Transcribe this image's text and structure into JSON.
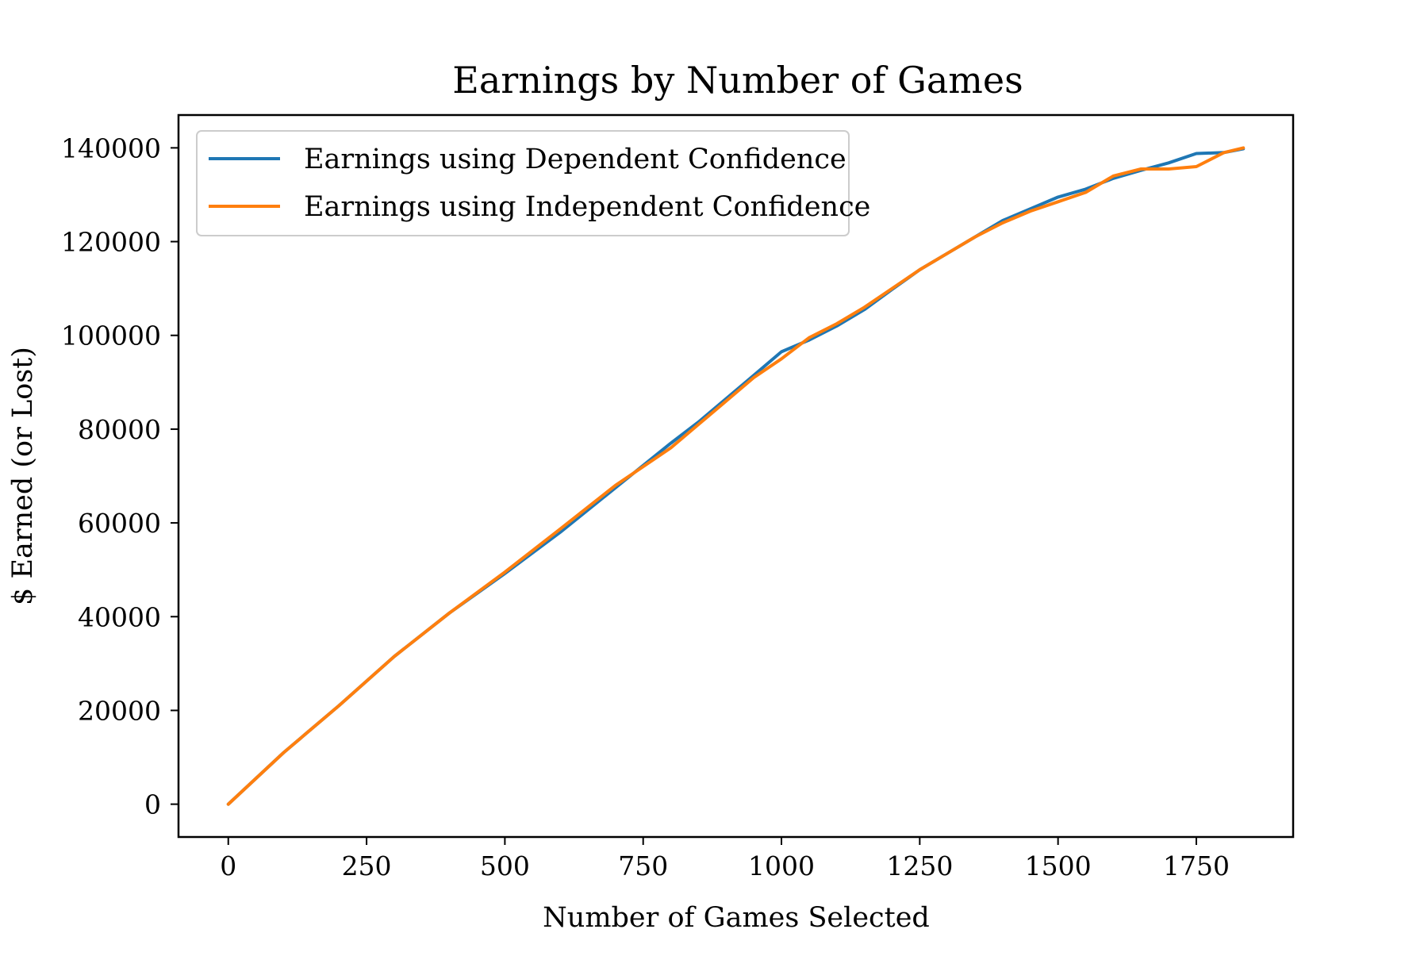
{
  "chart_data": {
    "type": "line",
    "title": "Earnings by Number of Games",
    "xlabel": "Number of Games Selected",
    "ylabel": "$ Earned (or Lost)",
    "xlim": [
      -90,
      1925
    ],
    "ylim": [
      -7000,
      147000
    ],
    "x_ticks": [
      0,
      250,
      500,
      750,
      1000,
      1250,
      1500,
      1750
    ],
    "x_tick_labels": [
      "0",
      "250",
      "500",
      "750",
      "1000",
      "1250",
      "1500",
      "1750"
    ],
    "y_ticks": [
      0,
      20000,
      40000,
      60000,
      80000,
      100000,
      120000,
      140000
    ],
    "y_tick_labels": [
      "0",
      "20000",
      "40000",
      "60000",
      "80000",
      "100000",
      "120000",
      "140000"
    ],
    "grid": false,
    "legend_position": "upper-left",
    "series": [
      {
        "name": "Earnings using Dependent Confidence",
        "color": "#1f77b4",
        "x": [
          0,
          100,
          200,
          300,
          400,
          500,
          600,
          700,
          800,
          850,
          900,
          950,
          1000,
          1050,
          1100,
          1150,
          1200,
          1250,
          1300,
          1350,
          1400,
          1450,
          1500,
          1550,
          1600,
          1650,
          1700,
          1750,
          1800,
          1835
        ],
        "y": [
          0,
          11000,
          21000,
          31500,
          40800,
          49200,
          58000,
          67500,
          77000,
          81500,
          86500,
          91500,
          96500,
          99000,
          102000,
          105500,
          109800,
          114000,
          117500,
          121000,
          124500,
          127000,
          129500,
          131200,
          133500,
          135200,
          136800,
          138800,
          139000,
          139800
        ]
      },
      {
        "name": "Earnings using Independent Confidence",
        "color": "#ff7f0e",
        "x": [
          0,
          100,
          200,
          300,
          400,
          500,
          600,
          700,
          800,
          850,
          900,
          950,
          1000,
          1050,
          1100,
          1150,
          1200,
          1250,
          1300,
          1350,
          1400,
          1450,
          1500,
          1550,
          1600,
          1650,
          1700,
          1750,
          1800,
          1835
        ],
        "y": [
          0,
          11000,
          21000,
          31500,
          40800,
          49500,
          58700,
          68000,
          76000,
          81000,
          86000,
          91000,
          95000,
          99500,
          102500,
          106000,
          110000,
          114000,
          117500,
          121000,
          124000,
          126500,
          128500,
          130500,
          134000,
          135500,
          135500,
          136000,
          139000,
          140000
        ]
      }
    ]
  }
}
